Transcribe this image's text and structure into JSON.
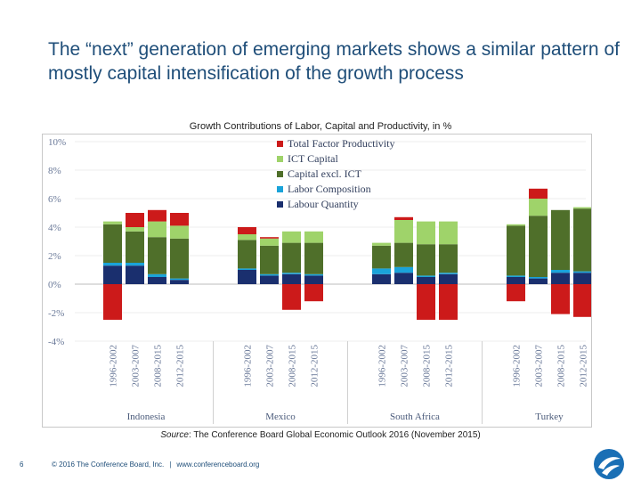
{
  "slide": {
    "title": "The “next” generation of emerging markets shows a similar pattern of mostly capital intensification of the growth process",
    "page_number": "6",
    "footer_copyright": "© 2016 The Conference Board, Inc.",
    "footer_separator": "|",
    "footer_url": "www.conferenceboard.org",
    "source_label": "Source",
    "source_text": ": The Conference Board Global Economic Outlook 2016 (November 2015)"
  },
  "chart_data": {
    "type": "bar",
    "stacked": true,
    "title": "Growth Contributions of Labor, Capital and Productivity, in %",
    "ylim": [
      -4,
      10
    ],
    "yticks": [
      10,
      8,
      6,
      4,
      2,
      0,
      -2,
      -4
    ],
    "ytick_labels": [
      "10%",
      "8%",
      "6%",
      "4%",
      "2%",
      "0%",
      "-2%",
      "-4%"
    ],
    "groups": [
      "Indonesia",
      "Mexico",
      "South Africa",
      "Turkey"
    ],
    "periods": [
      "1996-2002",
      "2003-2007",
      "2008-2015",
      "2012-2015"
    ],
    "series": [
      {
        "name": "Labour Quantity",
        "color": "#1a2f6e",
        "values": [
          [
            1.3,
            1.3,
            0.5,
            0.3
          ],
          [
            1.0,
            0.6,
            0.7,
            0.6
          ],
          [
            0.7,
            0.8,
            0.5,
            0.7
          ],
          [
            0.5,
            0.4,
            0.8,
            0.8
          ]
        ]
      },
      {
        "name": "Labor Composition",
        "color": "#1aa3d9",
        "values": [
          [
            0.2,
            0.2,
            0.2,
            0.1
          ],
          [
            0.1,
            0.1,
            0.1,
            0.1
          ],
          [
            0.4,
            0.4,
            0.1,
            0.1
          ],
          [
            0.1,
            0.1,
            0.2,
            0.1
          ]
        ]
      },
      {
        "name": "Capital excl. ICT",
        "color": "#4f6f2a",
        "values": [
          [
            2.7,
            2.2,
            2.6,
            2.8
          ],
          [
            2.0,
            2.0,
            2.1,
            2.2
          ],
          [
            1.6,
            1.7,
            2.2,
            2.0
          ],
          [
            3.5,
            4.3,
            4.2,
            4.4
          ]
        ]
      },
      {
        "name": "ICT Capital",
        "color": "#9fd36a",
        "values": [
          [
            0.2,
            0.3,
            1.1,
            0.9
          ],
          [
            0.4,
            0.5,
            0.8,
            0.8
          ],
          [
            0.2,
            1.6,
            1.6,
            1.6
          ],
          [
            0.1,
            1.2,
            0.0,
            0.1
          ]
        ]
      },
      {
        "name": "Total Factor Productivity",
        "color": "#cc1a1a",
        "values": [
          [
            -2.5,
            1.0,
            0.8,
            0.9
          ],
          [
            0.5,
            0.1,
            -1.8,
            -1.2
          ],
          [
            0.0,
            0.2,
            -2.5,
            -2.5
          ],
          [
            -1.2,
            0.7,
            -2.1,
            -2.3
          ]
        ]
      }
    ],
    "legend_position": "top-center"
  }
}
